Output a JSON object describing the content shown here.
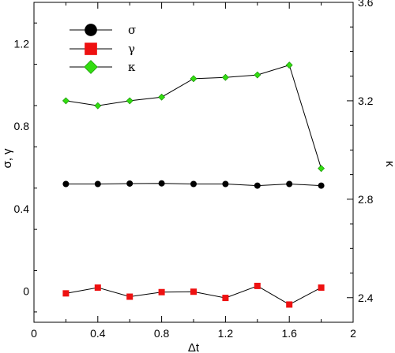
{
  "chart_data": {
    "type": "line",
    "xlabel": "Δt",
    "ylabel_left": "σ, γ",
    "ylabel_right": "κ",
    "xlim": [
      0,
      2
    ],
    "ylim_left": [
      -0.15,
      1.4
    ],
    "ylim_right": [
      2.3,
      3.6
    ],
    "x_ticks": [
      0,
      0.4,
      0.8,
      1.2,
      1.6,
      2
    ],
    "x_tick_labels": [
      "0",
      "0.4",
      "0.8",
      "1.2",
      "1.6",
      "2"
    ],
    "y_left_ticks": [
      0,
      0.4,
      0.8,
      1.2
    ],
    "y_left_tick_labels": [
      "0",
      "0.4",
      "0.8",
      "1.2"
    ],
    "y_right_ticks": [
      2.4,
      2.8,
      3.2,
      3.6
    ],
    "y_right_tick_labels": [
      "2.4",
      "2.8",
      "3.2",
      "3.6"
    ],
    "grid": false,
    "legend_position": "top-left",
    "x": [
      0.2,
      0.4,
      0.6,
      0.8,
      1.0,
      1.2,
      1.4,
      1.6,
      1.8
    ],
    "series": [
      {
        "name": "σ",
        "axis": "left",
        "marker": "circle",
        "color": "#000000",
        "values": [
          0.52,
          0.52,
          0.522,
          0.523,
          0.52,
          0.52,
          0.512,
          0.52,
          0.512
        ]
      },
      {
        "name": "γ",
        "axis": "left",
        "marker": "square",
        "color": "#ee1111",
        "values": [
          -0.01,
          0.018,
          -0.026,
          -0.004,
          -0.002,
          -0.032,
          0.026,
          -0.064,
          0.018
        ]
      },
      {
        "name": "κ",
        "axis": "right",
        "marker": "diamond",
        "color": "#33dd11",
        "values": [
          3.2,
          3.18,
          3.2,
          3.215,
          3.29,
          3.295,
          3.305,
          3.345,
          2.925
        ]
      }
    ]
  }
}
